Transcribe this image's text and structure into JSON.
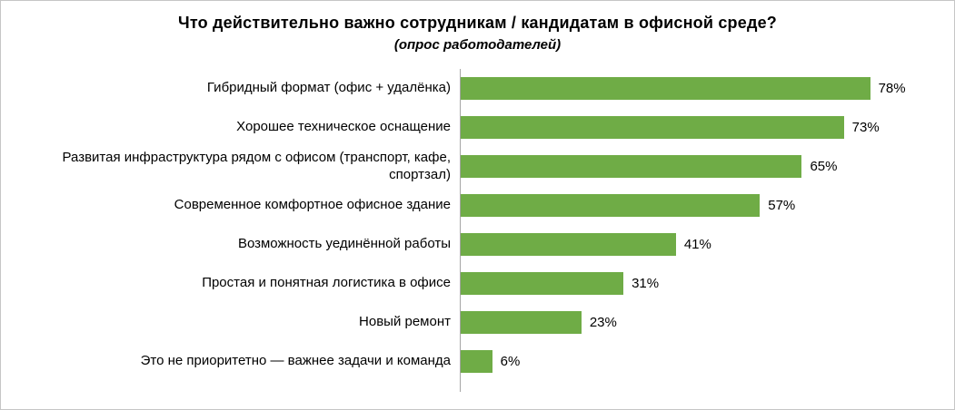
{
  "frame": {
    "background": "#ffffff",
    "border_color": "#c6c6c6"
  },
  "chart_data": {
    "type": "bar",
    "orientation": "horizontal",
    "title": "Что действительно важно сотрудникам / кандидатам в офисной среде?",
    "subtitle": "(опрос работодателей)",
    "categories": [
      "Гибридный формат (офис + удалёнка)",
      "Хорошее техническое оснащение",
      "Развитая инфраструктура рядом с офисом (транспорт, кафе, спортзал)",
      "Современное комфортное офисное здание",
      "Возможность уединённой работы",
      "Простая и понятная логистика в офисе",
      "Новый ремонт",
      "Это не приоритетно — важнее задачи и команда"
    ],
    "values": [
      78,
      73,
      65,
      57,
      41,
      31,
      23,
      6
    ],
    "value_suffix": "%",
    "xlim": [
      0,
      85
    ],
    "bar_color": "#6fac46",
    "axis_line_color": "#a6a6a6",
    "text_color": "#000000",
    "grid": false,
    "legend": false
  }
}
